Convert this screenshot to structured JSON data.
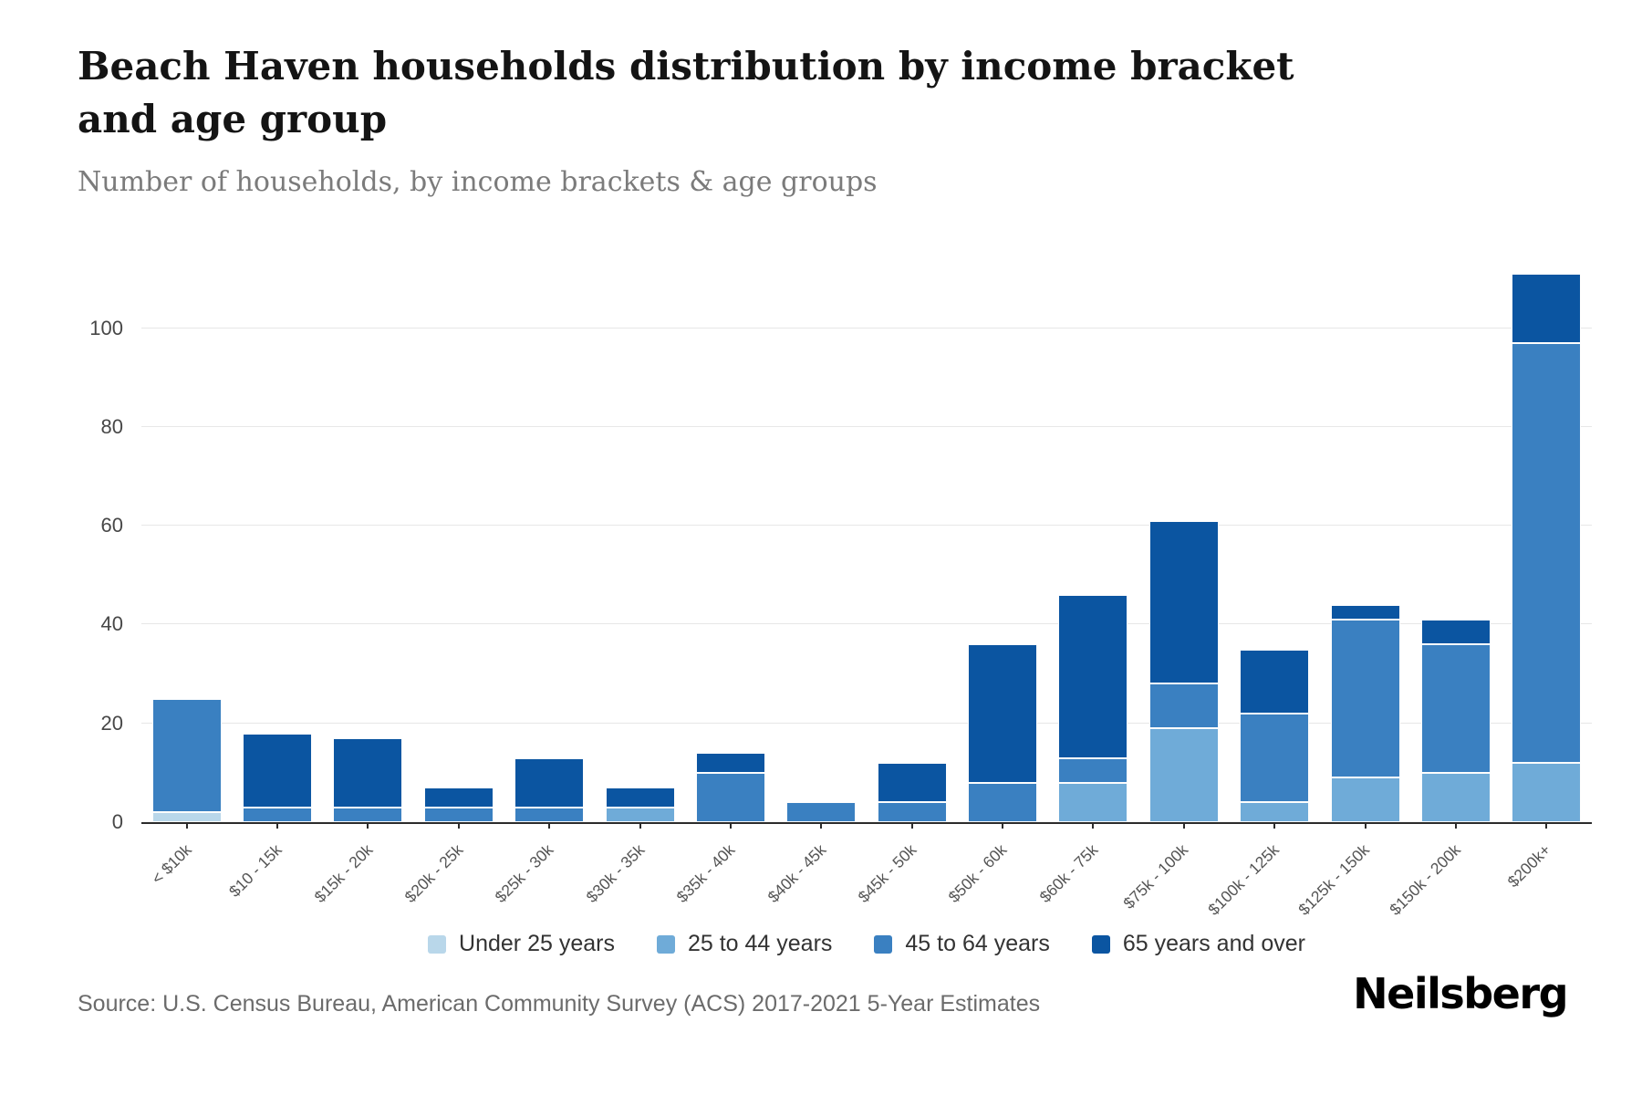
{
  "header": {
    "title": "Beach Haven households distribution by income bracket and age group",
    "subtitle": "Number of households, by income brackets & age groups"
  },
  "footer": {
    "source": "Source: U.S. Census Bureau, American Community Survey (ACS) 2017-2021 5-Year Estimates",
    "logo": "Neilsberg"
  },
  "colors": {
    "under_25": "#b9d7ea",
    "age_25_44": "#6fabd8",
    "age_45_64": "#3a80c1",
    "age_65_over": "#0b55a1",
    "gridline": "#e7e7e7",
    "axis_line": "#2b2b2b"
  },
  "chart_data": {
    "type": "bar",
    "stacked": true,
    "title": "Beach Haven households distribution by income bracket and age group",
    "subtitle": "Number of households, by income brackets & age groups",
    "xlabel": "",
    "ylabel": "",
    "ylim": [
      0,
      111
    ],
    "yticks": [
      0,
      20,
      40,
      60,
      80,
      100
    ],
    "grid": true,
    "legend_position": "bottom",
    "categories": [
      "< $10k",
      "$10 - 15k",
      "$15k - 20k",
      "$20k - 25k",
      "$25k - 30k",
      "$30k - 35k",
      "$35k - 40k",
      "$40k - 45k",
      "$45k - 50k",
      "$50k - 60k",
      "$60k - 75k",
      "$75k - 100k",
      "$100k - 125k",
      "$125k - 150k",
      "$150k - 200k",
      "$200k+"
    ],
    "series": [
      {
        "name": "Under 25 years",
        "color": "#b9d7ea",
        "values": [
          2,
          0,
          0,
          0,
          0,
          0,
          0,
          0,
          0,
          0,
          0,
          0,
          0,
          0,
          0,
          0
        ]
      },
      {
        "name": "25 to 44 years",
        "color": "#6fabd8",
        "values": [
          0,
          0,
          0,
          0,
          0,
          3,
          0,
          0,
          0,
          0,
          8,
          19,
          4,
          9,
          10,
          12
        ]
      },
      {
        "name": "45 to 64 years",
        "color": "#3a80c1",
        "values": [
          23,
          3,
          3,
          3,
          3,
          0,
          10,
          4,
          4,
          8,
          5,
          9,
          18,
          32,
          26,
          85
        ]
      },
      {
        "name": "65 years and over",
        "color": "#0b55a1",
        "values": [
          0,
          15,
          14,
          4,
          10,
          4,
          4,
          0,
          8,
          28,
          33,
          33,
          13,
          3,
          5,
          14
        ]
      }
    ],
    "totals": [
      25,
      18,
      17,
      7,
      13,
      7,
      14,
      4,
      12,
      36,
      46,
      61,
      35,
      44,
      41,
      111
    ]
  }
}
